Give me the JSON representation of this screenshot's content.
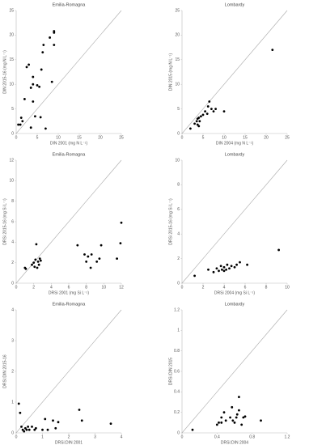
{
  "chart_data": [
    {
      "type": "scatter",
      "title": "Emilia-Romagna",
      "x_label": "DIN 2001 (mg N L⁻¹)",
      "y_label": "DIN 2015-16 (mg N L⁻¹)",
      "xlim": [
        0,
        25
      ],
      "ylim": [
        0,
        25
      ],
      "xticks": [
        0,
        5,
        10,
        15,
        20,
        25
      ],
      "yticks": [
        0,
        5,
        10,
        15,
        20,
        25
      ],
      "color": "#000000",
      "x": [
        0.5,
        1,
        1.2,
        1.5,
        2,
        2.5,
        3,
        3.5,
        3.5,
        4,
        4,
        4,
        4.5,
        5,
        5.5,
        5.8,
        6,
        6.3,
        6.5,
        7,
        8,
        8.5,
        9,
        9,
        9
      ],
      "values": [
        1.8,
        1.8,
        3.2,
        2.5,
        7,
        13.5,
        14,
        1.2,
        9.3,
        10,
        11.5,
        6.5,
        3.5,
        9.8,
        9.5,
        3.3,
        13,
        16.5,
        18,
        1,
        19.5,
        10.5,
        20.5,
        20.8,
        18
      ]
    },
    {
      "type": "scatter",
      "title": "Lombardy",
      "x_label": "DIN 2004 (mg N L⁻¹)",
      "y_label": "DIN 2015 (mg N L⁻¹)",
      "xlim": [
        0,
        25
      ],
      "ylim": [
        0,
        25
      ],
      "xticks": [
        0,
        5,
        10,
        15,
        20,
        25
      ],
      "yticks": [
        0,
        5,
        10,
        15,
        20,
        25
      ],
      "color": "#000000",
      "x": [
        2,
        3,
        3.5,
        3.7,
        3.7,
        4,
        4,
        4.2,
        4.5,
        5,
        5.5,
        6,
        6.2,
        6.5,
        7,
        7.5,
        8,
        10,
        21.5
      ],
      "values": [
        1,
        2,
        2.5,
        1.8,
        3,
        1.5,
        3.2,
        2.5,
        3.5,
        3.8,
        4.5,
        4,
        5.5,
        6.5,
        5,
        4.5,
        5,
        4.5,
        17
      ]
    },
    {
      "type": "scatter",
      "title": "Emilia-Romagna",
      "x_label": "DRSi 2001 (mg Si L⁻¹)",
      "y_label": "DRSi 2015-16 (mg Si L⁻¹)",
      "xlim": [
        0,
        12
      ],
      "ylim": [
        0,
        12
      ],
      "xticks": [
        0,
        2,
        4,
        6,
        8,
        10,
        12
      ],
      "yticks": [
        0,
        2,
        4,
        6,
        8,
        10,
        12
      ],
      "color": "#000000",
      "x": [
        1,
        1.1,
        1.8,
        2,
        2.1,
        2.2,
        2.3,
        2.4,
        2.5,
        2.6,
        2.7,
        2.8,
        7,
        7.8,
        8,
        8.2,
        8.5,
        8.6,
        9.2,
        9.5,
        9.7,
        11.5,
        11.9,
        12
      ],
      "values": [
        1.5,
        1.4,
        1.8,
        2,
        1.6,
        2.3,
        3.8,
        1.5,
        2.1,
        1.8,
        2.4,
        2.2,
        3.7,
        2.8,
        2.1,
        2.6,
        1.5,
        2.8,
        2.1,
        2.4,
        3.7,
        2.4,
        3.9,
        5.9
      ]
    },
    {
      "type": "scatter",
      "title": "Lombardy",
      "x_label": "DRSi 2004 (mg Si L⁻¹)",
      "y_label": "DRSi 2015-16 (mg Si L⁻¹)",
      "xlim": [
        0,
        10
      ],
      "ylim": [
        0,
        10
      ],
      "xticks": [
        0,
        2,
        4,
        6,
        8,
        10
      ],
      "yticks": [
        0,
        2,
        4,
        6,
        8,
        10
      ],
      "color": "#000000",
      "x": [
        1.2,
        2.5,
        3,
        3.3,
        3.5,
        3.7,
        3.8,
        4,
        4,
        4.2,
        4.3,
        4.5,
        4.7,
        5,
        5.2,
        5.5,
        6.2,
        9.2
      ],
      "values": [
        0.6,
        1.1,
        0.9,
        1.2,
        1,
        1.4,
        1.1,
        1,
        1.3,
        1.1,
        1.5,
        1.2,
        1.4,
        1.3,
        1.5,
        1.7,
        1.5,
        2.7
      ]
    },
    {
      "type": "scatter",
      "title": "Emilia-Romagna",
      "x_label": "DRSi:DIN 2001",
      "y_label": "DRSi:DIN 2015-16",
      "xlim": [
        0,
        4
      ],
      "ylim": [
        0,
        4
      ],
      "xticks": [
        0,
        1,
        2,
        3,
        4
      ],
      "yticks": [
        0,
        1,
        2,
        3,
        4
      ],
      "color": "#000000",
      "x": [
        0.1,
        0.15,
        0.2,
        0.25,
        0.3,
        0.35,
        0.4,
        0.45,
        0.5,
        0.6,
        0.7,
        0.75,
        1,
        1.1,
        1.2,
        1.4,
        1.5,
        1.6,
        2.4,
        2.5,
        3.6
      ],
      "values": [
        0.95,
        0.65,
        0.2,
        0.1,
        0.05,
        0.15,
        0.1,
        0.2,
        0.1,
        0.2,
        0.1,
        0.15,
        0.1,
        0.45,
        0.1,
        0.4,
        0.15,
        0.35,
        0.75,
        0.4,
        0.3
      ]
    },
    {
      "type": "scatter",
      "title": "Lombardy",
      "x_label": "DRSi:DIN 2004",
      "y_label": "DRSi:DIN 2015",
      "xlim": [
        0,
        1.2
      ],
      "ylim": [
        0,
        1.2
      ],
      "xticks": [
        0,
        0.4,
        0.8,
        1.2
      ],
      "yticks": [
        0,
        0.2,
        0.4,
        0.6,
        0.8,
        1,
        1.2
      ],
      "color": "#000000",
      "x": [
        0.12,
        0.4,
        0.42,
        0.45,
        0.45,
        0.48,
        0.5,
        0.55,
        0.57,
        0.58,
        0.6,
        0.62,
        0.63,
        0.65,
        0.65,
        0.68,
        0.7,
        0.72,
        0.9
      ],
      "values": [
        0.03,
        0.08,
        0.1,
        0.1,
        0.15,
        0.2,
        0.12,
        0.15,
        0.25,
        0.12,
        0.1,
        0.15,
        0.18,
        0.35,
        0.22,
        0.08,
        0.15,
        0.16,
        0.12
      ]
    }
  ]
}
